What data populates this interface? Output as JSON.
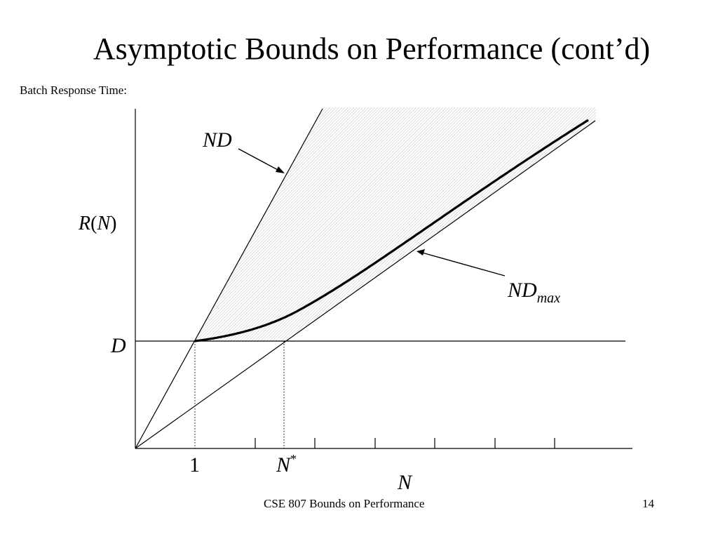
{
  "slide": {
    "title": "Asymptotic Bounds on Performance (cont’d)",
    "subtitle": "Batch Response Time:",
    "footer_course": "CSE 807  Bounds on Performance",
    "page_number": "14"
  },
  "diagram": {
    "y_axis_label_R": "R",
    "y_axis_label_paren_open": "(",
    "y_axis_label_N": "N",
    "y_axis_label_paren_close": ")",
    "d_label": "D",
    "x_tick_one": "1",
    "x_tick_nstar": "N",
    "x_tick_nstar_sup": "*",
    "x_axis_label": "N",
    "upper_bound_label": "ND",
    "lower_bound_label": "ND",
    "lower_bound_subscript": "max"
  }
}
